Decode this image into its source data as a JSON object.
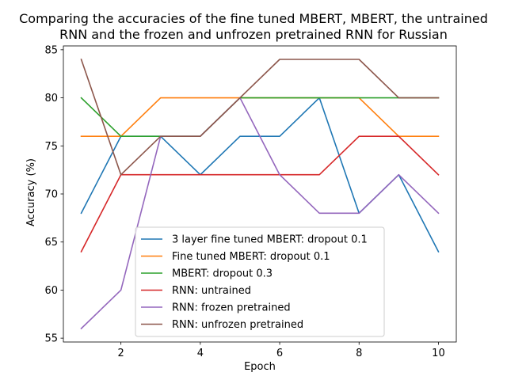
{
  "chart_data": {
    "type": "line",
    "title_line1": "Comparing the accuracies of the fine tuned MBERT, MBERT, the untrained",
    "title_line2": "RNN and the frozen and unfrozen pretrained RNN for Russian",
    "xlabel": "Epoch",
    "ylabel": "Accuracy (%)",
    "x": [
      1,
      2,
      3,
      4,
      5,
      6,
      7,
      8,
      9,
      10
    ],
    "xlim": [
      0.55,
      10.45
    ],
    "ylim": [
      54.6,
      85.4
    ],
    "xticks": [
      2,
      4,
      6,
      8,
      10
    ],
    "yticks": [
      55,
      60,
      65,
      70,
      75,
      80,
      85
    ],
    "legend_position": "lower center",
    "series": [
      {
        "name": "3 layer fine tuned MBERT: dropout 0.1",
        "color": "#1f77b4",
        "values": [
          68,
          76,
          76,
          72,
          76,
          76,
          80,
          68,
          72,
          64
        ]
      },
      {
        "name": "Fine tuned MBERT: dropout 0.1",
        "color": "#ff7f0e",
        "values": [
          76,
          76,
          80,
          80,
          80,
          80,
          80,
          80,
          76,
          76
        ]
      },
      {
        "name": "MBERT: dropout 0.3",
        "color": "#2ca02c",
        "values": [
          80,
          76,
          76,
          76,
          80,
          80,
          80,
          80,
          80,
          80
        ]
      },
      {
        "name": "RNN: untrained",
        "color": "#d62728",
        "values": [
          64,
          72,
          72,
          72,
          72,
          72,
          72,
          76,
          76,
          72
        ]
      },
      {
        "name": "RNN: frozen pretrained",
        "color": "#9467bd",
        "values": [
          56,
          60,
          76,
          76,
          80,
          72,
          68,
          68,
          72,
          68
        ]
      },
      {
        "name": "RNN: unfrozen pretrained",
        "color": "#8c564b",
        "values": [
          84,
          72,
          76,
          76,
          80,
          84,
          84,
          84,
          80,
          80
        ]
      }
    ]
  }
}
